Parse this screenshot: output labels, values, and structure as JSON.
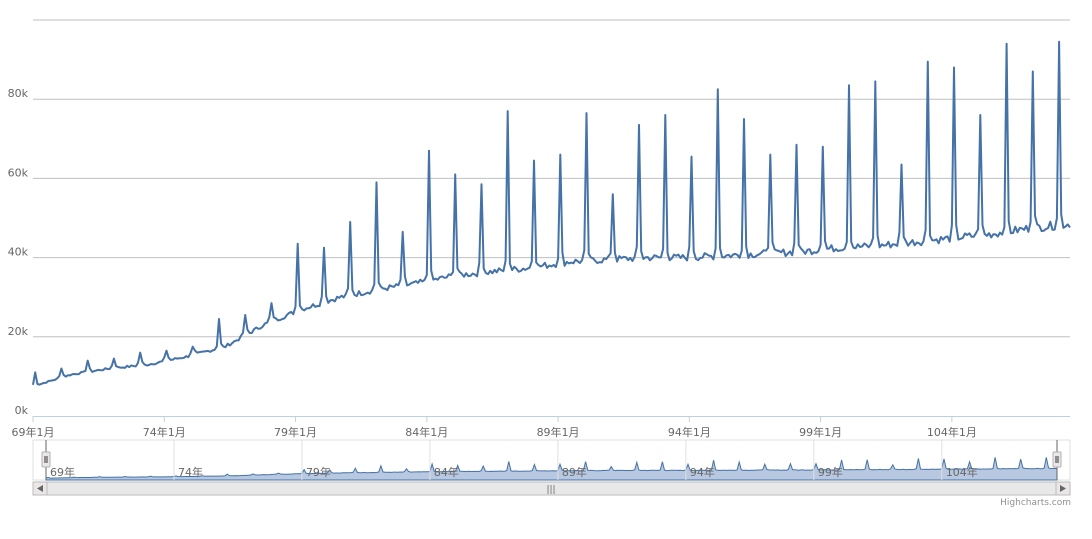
{
  "chart_data": {
    "type": "line",
    "title": "",
    "xlabel": "",
    "ylabel": "",
    "x_range": [
      "69年1月",
      "108年6月"
    ],
    "ylim": [
      0,
      100000
    ],
    "y_tick_labels": [
      "0k",
      "20k",
      "40k",
      "60k",
      "80k"
    ],
    "x_tick_labels": [
      "69年1月",
      "74年1月",
      "79年1月",
      "84年1月",
      "89年1月",
      "94年1月",
      "99年1月",
      "104年1月"
    ],
    "navigator_tick_labels": [
      "69年",
      "74年",
      "79年",
      "84年",
      "89年",
      "94年",
      "99年",
      "104年"
    ],
    "grid": true,
    "legend": "none",
    "series_color": "#4572A7",
    "navigator_fill": "#b7c8e0",
    "series": [
      {
        "values": [
          7500,
          10500,
          12000,
          13000,
          15000,
          17500,
          23000,
          27000,
          30000,
          32000,
          33500,
          35500,
          36500,
          37500,
          39000,
          39500,
          40000,
          40000,
          40500,
          41000,
          41500,
          42500,
          43000,
          44000,
          45000,
          46000,
          47500,
          48500
        ],
        "peaks": [
          {
            "year": 69,
            "value": 11000
          },
          {
            "year": 70,
            "value": 12000
          },
          {
            "year": 71,
            "value": 14000
          },
          {
            "year": 72,
            "value": 14500
          },
          {
            "year": 73,
            "value": 16000
          },
          {
            "year": 74,
            "value": 16500
          },
          {
            "year": 75,
            "value": 17500
          },
          {
            "year": 76,
            "value": 24500
          },
          {
            "year": 77,
            "value": 25500
          },
          {
            "year": 78,
            "value": 28500
          },
          {
            "year": 79,
            "value": 43500
          },
          {
            "year": 80,
            "value": 42500
          },
          {
            "year": 81,
            "value": 49000
          },
          {
            "year": 82,
            "value": 59000
          },
          {
            "year": 83,
            "value": 46500
          },
          {
            "year": 84,
            "value": 67000
          },
          {
            "year": 85,
            "value": 61000
          },
          {
            "year": 86,
            "value": 58500
          },
          {
            "year": 87,
            "value": 77000
          },
          {
            "year": 88,
            "value": 64500
          },
          {
            "year": 89,
            "value": 66000
          },
          {
            "year": 90,
            "value": 76500
          },
          {
            "year": 91,
            "value": 56000
          },
          {
            "year": 92,
            "value": 73500
          },
          {
            "year": 93,
            "value": 76000
          },
          {
            "year": 94,
            "value": 65500
          },
          {
            "year": 95,
            "value": 82500
          },
          {
            "year": 96,
            "value": 75000
          },
          {
            "year": 97,
            "value": 66000
          },
          {
            "year": 98,
            "value": 68500
          },
          {
            "year": 99,
            "value": 68000
          },
          {
            "year": 100,
            "value": 83500
          },
          {
            "year": 101,
            "value": 84500
          },
          {
            "year": 102,
            "value": 63500
          },
          {
            "year": 103,
            "value": 89500
          },
          {
            "year": 104,
            "value": 88000
          },
          {
            "year": 105,
            "value": 76000
          },
          {
            "year": 106,
            "value": 94000
          },
          {
            "year": 107,
            "value": 87000
          },
          {
            "year": 108,
            "value": 94500
          }
        ]
      }
    ]
  },
  "credits": "Highcharts.com",
  "navigator": {
    "scrollbar_grip": "|||"
  }
}
